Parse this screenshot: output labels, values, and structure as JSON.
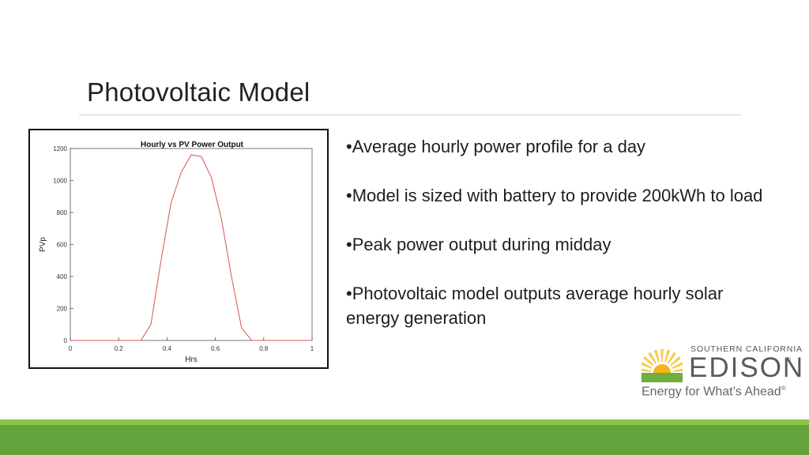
{
  "slide": {
    "title": "Photovoltaic Model",
    "bullets": [
      "•Average hourly power profile for a day",
      "•Model is sized with battery to provide 200kWh to load",
      "•Peak power output during midday",
      "•Photovoltaic model outputs average hourly solar energy generation"
    ]
  },
  "logo": {
    "small_text": "SOUTHERN CALIFORNIA",
    "big_text": "EDISON",
    "registered_mark": "®",
    "tagline": "Energy for What’s Ahead",
    "tagline_mark": "®",
    "colors": {
      "sun": "#f4b41a",
      "sun_rays": "#f7c948",
      "base": "#6fae3f",
      "text": "#5a5a5a"
    }
  },
  "colors": {
    "footer_light": "#8cc34a",
    "footer_dark": "#64a33b",
    "series_line": "#d9544f"
  },
  "chart_data": {
    "type": "line",
    "title": "Hourly vs PV Power Output",
    "xlabel": "Hrs",
    "ylabel": "PVp",
    "xlim": [
      0,
      1
    ],
    "ylim": [
      0,
      1200
    ],
    "xticks": [
      "0",
      "0.2",
      "0.4",
      "0.6",
      "0.8",
      "1"
    ],
    "yticks": [
      "0",
      "200",
      "400",
      "600",
      "800",
      "1000",
      "1200"
    ],
    "grid": false,
    "series": [
      {
        "x": [
          0,
          0.0417,
          0.0833,
          0.125,
          0.1667,
          0.2083,
          0.25,
          0.2917,
          0.3333,
          0.375,
          0.4167,
          0.4583,
          0.5,
          0.5417,
          0.5833,
          0.625,
          0.6667,
          0.7083,
          0.75,
          0.7917,
          0.8333,
          0.875,
          0.9167,
          0.9583,
          1
        ],
        "y": [
          0,
          0,
          0,
          0,
          0,
          0,
          0,
          0,
          100,
          500,
          860,
          1050,
          1160,
          1150,
          1020,
          760,
          400,
          80,
          0,
          0,
          0,
          0,
          0,
          0,
          0
        ]
      }
    ]
  }
}
